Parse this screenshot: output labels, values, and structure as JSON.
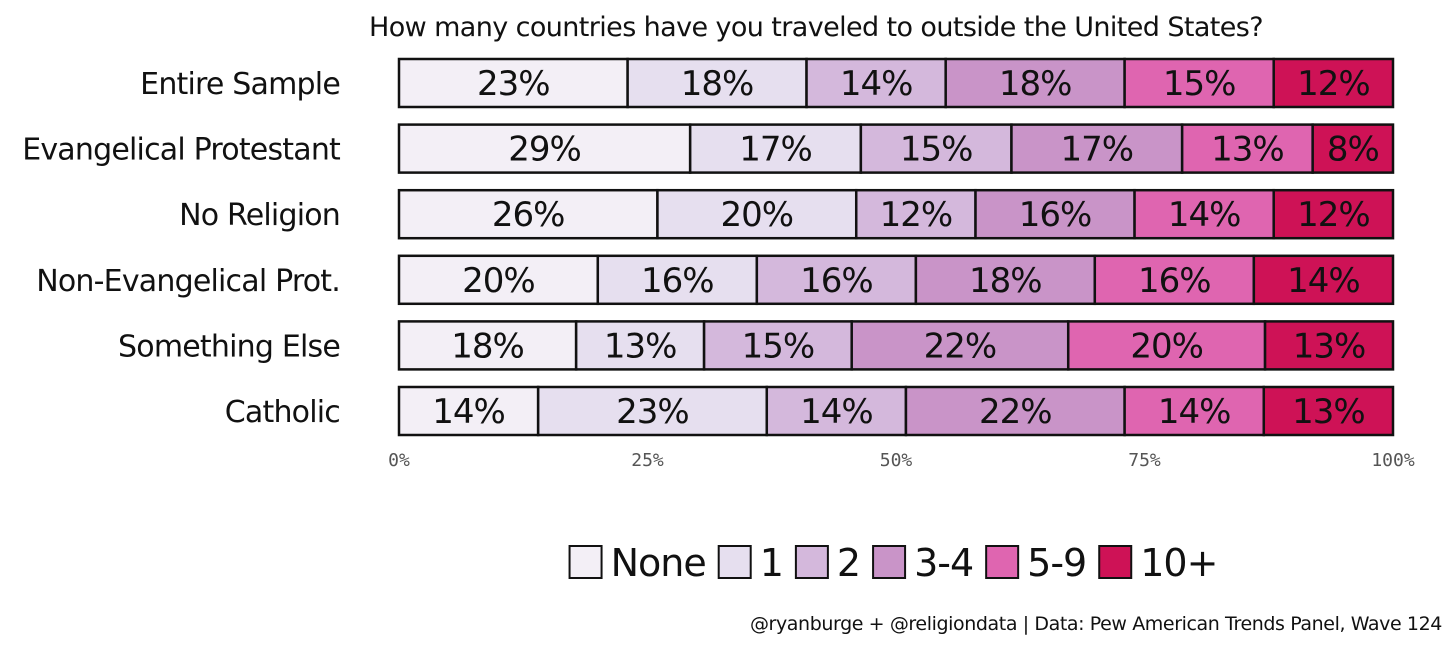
{
  "chart_data": {
    "type": "bar",
    "orientation": "horizontal",
    "stacked": true,
    "title": "How many countries have you traveled to outside the United States?",
    "categories": [
      "Entire Sample",
      "Evangelical Protestant",
      "No Religion",
      "Non-Evangelical Prot.",
      "Something Else",
      "Catholic"
    ],
    "series": [
      {
        "name": "None",
        "color": "#f3eff6",
        "values": [
          23,
          29,
          26,
          20,
          18,
          14
        ],
        "labels": [
          "23%",
          "29%",
          "26%",
          "20%",
          "18%",
          "14%"
        ]
      },
      {
        "name": "1",
        "color": "#e6dfef",
        "values": [
          18,
          17,
          20,
          16,
          13,
          23
        ],
        "labels": [
          "18%",
          "17%",
          "20%",
          "16%",
          "13%",
          "23%"
        ]
      },
      {
        "name": "2",
        "color": "#d4b8dc",
        "values": [
          14,
          15,
          12,
          16,
          15,
          14
        ],
        "labels": [
          "14%",
          "15%",
          "12%",
          "16%",
          "15%",
          "14%"
        ]
      },
      {
        "name": "3-4",
        "color": "#c994c8",
        "values": [
          18,
          17,
          16,
          18,
          22,
          22
        ],
        "labels": [
          "18%",
          "17%",
          "16%",
          "18%",
          "22%",
          "22%"
        ]
      },
      {
        "name": "5-9",
        "color": "#df65b0",
        "values": [
          15,
          13,
          14,
          16,
          20,
          14
        ],
        "labels": [
          "15%",
          "13%",
          "14%",
          "16%",
          "20%",
          "14%"
        ]
      },
      {
        "name": "10+",
        "color": "#ce1256",
        "values": [
          12,
          8,
          12,
          14,
          13,
          13
        ],
        "labels": [
          "12%",
          "8%",
          "12%",
          "14%",
          "13%",
          "13%"
        ]
      }
    ],
    "xlim": [
      0,
      100
    ],
    "xticks": [
      {
        "value": 0,
        "label": "0%"
      },
      {
        "value": 25,
        "label": "25%"
      },
      {
        "value": 50,
        "label": "50%"
      },
      {
        "value": 75,
        "label": "75%"
      },
      {
        "value": 100,
        "label": "100%"
      }
    ],
    "grid": false,
    "legend_position": "bottom",
    "caption": "@ryanburge + @religiondata | Data: Pew American Trends Panel, Wave 124"
  }
}
